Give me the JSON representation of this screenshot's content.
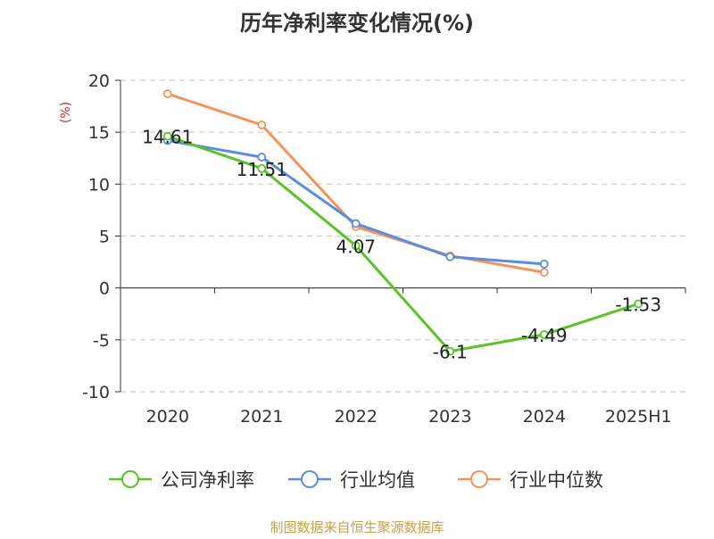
{
  "chart_data": {
    "type": "line",
    "title": "历年净利率变化情况(%)",
    "ylabel": "(%)",
    "categories": [
      "2020",
      "2021",
      "2022",
      "2023",
      "2024",
      "2025H1"
    ],
    "ylim": [
      -10,
      20
    ],
    "yticks": [
      20,
      15,
      10,
      5,
      0,
      -5,
      -10
    ],
    "grid": true,
    "legend_position": "bottom",
    "series": [
      {
        "name": "公司净利率",
        "color": "#5ac427",
        "values": [
          14.61,
          11.51,
          4.07,
          -6.1,
          -4.49,
          -1.53
        ],
        "labels": [
          "14.61",
          "11.51",
          "4.07",
          "-6.1",
          "-4.49",
          "-1.53"
        ]
      },
      {
        "name": "行业均值",
        "color": "#5a8de0",
        "values": [
          14.2,
          12.6,
          6.2,
          3.0,
          2.3,
          null
        ]
      },
      {
        "name": "行业中位数",
        "color": "#f79358",
        "values": [
          18.7,
          15.7,
          5.9,
          3.1,
          1.5,
          null
        ]
      }
    ]
  },
  "source": "制图数据来自恒生聚源数据库",
  "colors": {
    "source_text": "#c8a24a",
    "ylabel_text": "#d62728",
    "axis": "#333333",
    "grid": "#cccccc"
  }
}
